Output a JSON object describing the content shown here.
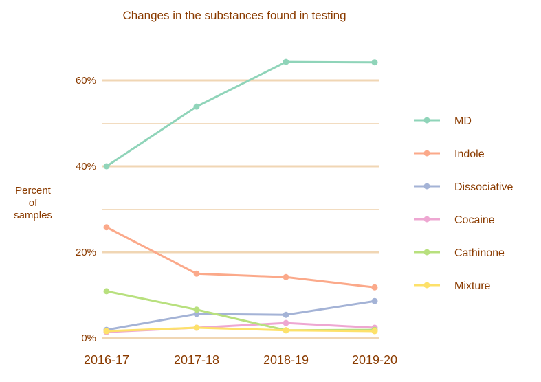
{
  "chart_data": {
    "type": "line",
    "title": "Changes in the substances found in testing",
    "ylabel": [
      "Percent",
      "of",
      "samples"
    ],
    "xlabel": "",
    "categories": [
      "2016-17",
      "2017-18",
      "2018-19",
      "2019-20"
    ],
    "ylim": [
      0,
      70
    ],
    "yticks": [
      0,
      20,
      40,
      60
    ],
    "ytick_labels": [
      "0%",
      "20%",
      "40%",
      "60%"
    ],
    "minor_gridlines": [
      10,
      30,
      50
    ],
    "grid": true,
    "legend_position": "right",
    "series": [
      {
        "name": "MD",
        "color": "#8fd4b9",
        "values": [
          40.0,
          53.9,
          64.3,
          64.2
        ]
      },
      {
        "name": "Indole",
        "color": "#fba98a",
        "values": [
          25.8,
          15.0,
          14.2,
          11.8
        ]
      },
      {
        "name": "Dissociative",
        "color": "#a4b3d6",
        "values": [
          1.9,
          5.6,
          5.4,
          8.6
        ]
      },
      {
        "name": "Cocaine",
        "color": "#eea7d2",
        "values": [
          1.4,
          2.4,
          3.5,
          2.4
        ]
      },
      {
        "name": "Cathinone",
        "color": "#b8e07e",
        "values": [
          10.9,
          6.6,
          1.8,
          1.9
        ]
      },
      {
        "name": "Mixture",
        "color": "#fde16a",
        "values": [
          1.6,
          2.4,
          1.8,
          1.6
        ]
      }
    ]
  }
}
